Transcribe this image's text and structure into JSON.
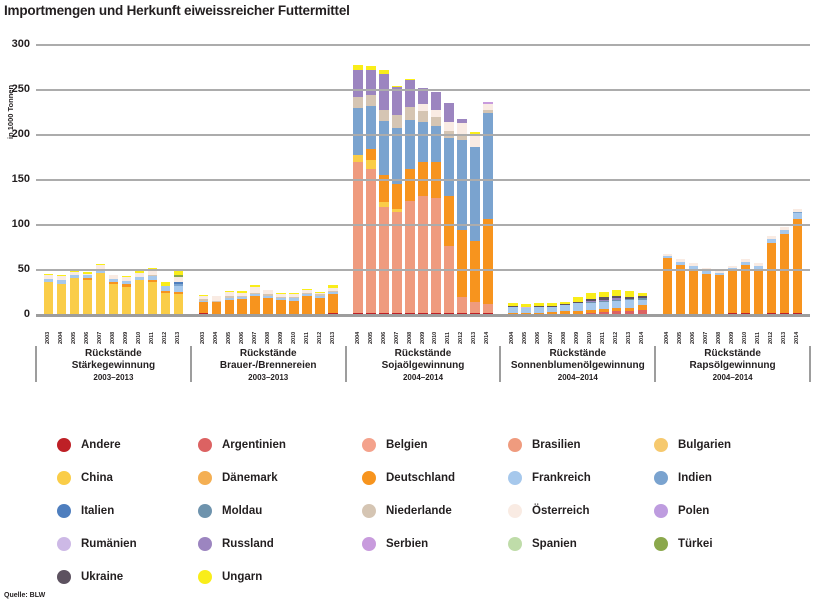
{
  "title": "Importmengen und Herkunft eiweissreicher Futtermittel",
  "source": "Quelle: BLW",
  "colors": {
    "Andere": "#be2026",
    "Argentinien": "#dc6262",
    "Belgien": "#f4a28c",
    "Brasilien": "#ef9b7e",
    "Bulgarien": "#f6c96e",
    "China": "#facd48",
    "Dänemark": "#f4af53",
    "Deutschland": "#f7941e",
    "Frankreich": "#a6c8ec",
    "Indien": "#7aa3cf",
    "Italien": "#4e7ebe",
    "Moldau": "#6e93ad",
    "Niederlande": "#d5c5b3",
    "Österreich": "#f9ebe3",
    "Polen": "#be9cdf",
    "Rumänien": "#cdb9e6",
    "Russland": "#9c85c0",
    "Serbien": "#c89bdd",
    "Spanien": "#bfdca9",
    "Türkei": "#8ba84c",
    "Ukraine": "#5d5260",
    "Ungarn": "#f9ed1a"
  },
  "legend": {
    "items": [
      "Andere",
      "Argentinien",
      "Belgien",
      "Brasilien",
      "Bulgarien",
      "China",
      "Dänemark",
      "Deutschland",
      "Frankreich",
      "Indien",
      "Italien",
      "Moldau",
      "Niederlande",
      "Österreich",
      "Polen",
      "Rumänien",
      "Russland",
      "Serbien",
      "Spanien",
      "Türkei",
      "Ukraine",
      "Ungarn"
    ]
  },
  "chart_data": {
    "type": "bar",
    "stacked": true,
    "title": "Importmengen und Herkunft eiweissreicher Futtermittel",
    "ylabel": "in 1000 Tonnen",
    "ylim": [
      0,
      300
    ],
    "yticks": [
      0,
      50,
      100,
      150,
      200,
      250,
      300
    ],
    "grid": true,
    "legend_position": "bottom",
    "stack_order": [
      "Andere",
      "Argentinien",
      "Belgien",
      "Brasilien",
      "Bulgarien",
      "China",
      "Dänemark",
      "Deutschland",
      "Frankreich",
      "Indien",
      "Italien",
      "Moldau",
      "Niederlande",
      "Österreich",
      "Polen",
      "Rumänien",
      "Russland",
      "Serbien",
      "Spanien",
      "Türkei",
      "Ukraine",
      "Ungarn"
    ],
    "groups": [
      {
        "label_line1": "Rückstände",
        "label_line2": "Stärkegewinnung",
        "years_label": "2003–2013",
        "years": [
          "2003",
          "2004",
          "2005",
          "2006",
          "2007",
          "2008",
          "2009",
          "2010",
          "2011",
          "2012",
          "2013"
        ],
        "bars": [
          {
            "Andere": 1,
            "China": 36,
            "Frankreich": 3,
            "Österreich": 4,
            "Ungarn": 2
          },
          {
            "Andere": 1,
            "China": 34,
            "Frankreich": 4,
            "Österreich": 4,
            "Ungarn": 1
          },
          {
            "Andere": 1,
            "China": 40,
            "Frankreich": 4,
            "Österreich": 3,
            "Ungarn": 3
          },
          {
            "Andere": 1,
            "China": 38,
            "Deutschland": 2,
            "Frankreich": 3,
            "Österreich": 2,
            "Ungarn": 2
          },
          {
            "Andere": 1,
            "China": 46,
            "Frankreich": 3,
            "Österreich": 6,
            "Ungarn": 1
          },
          {
            "Andere": 1,
            "China": 34,
            "Deutschland": 2,
            "Frankreich": 3,
            "Österreich": 4
          },
          {
            "Andere": 1,
            "China": 30,
            "Deutschland": 3,
            "Frankreich": 4,
            "Österreich": 4,
            "Ungarn": 1
          },
          {
            "Andere": 1,
            "China": 38,
            "Frankreich": 3,
            "Österreich": 5,
            "Ungarn": 2
          },
          {
            "Andere": 1,
            "China": 36,
            "Deutschland": 2,
            "Frankreich": 4,
            "Niederlande": 2,
            "Österreich": 4,
            "Ungarn": 3
          },
          {
            "Andere": 1,
            "China": 24,
            "Deutschland": 2,
            "Frankreich": 5,
            "Ungarn": 5
          },
          {
            "Andere": 1,
            "China": 22,
            "Deutschland": 3,
            "Frankreich": 6,
            "Indien": 3,
            "Italien": 2,
            "Österreich": 5,
            "Türkei": 3,
            "Ungarn": 5
          }
        ]
      },
      {
        "label_line1": "Rückstände",
        "label_line2": "Brauer-/Brennereien",
        "years_label": "2003–2013",
        "years": [
          "2003",
          "2004",
          "2005",
          "2006",
          "2007",
          "2008",
          "2009",
          "2010",
          "2011",
          "2012",
          "2013"
        ],
        "bars": [
          {
            "Andere": 2,
            "Deutschland": 13,
            "Frankreich": 1,
            "Niederlande": 2,
            "Österreich": 3,
            "Ungarn": 1
          },
          {
            "Andere": 1,
            "Deutschland": 14,
            "Niederlande": 1,
            "Österreich": 5
          },
          {
            "Andere": 1,
            "Deutschland": 16,
            "Frankreich": 2,
            "Niederlande": 2,
            "Österreich": 5,
            "Ungarn": 1
          },
          {
            "Andere": 1,
            "Deutschland": 17,
            "Frankreich": 2,
            "Niederlande": 1,
            "Österreich": 4,
            "Ungarn": 2
          },
          {
            "Andere": 1,
            "Deutschland": 20,
            "Frankreich": 2,
            "Niederlande": 2,
            "Österreich": 6,
            "Ungarn": 2
          },
          {
            "Andere": 1,
            "Deutschland": 18,
            "Frankreich": 2,
            "Niederlande": 2,
            "Österreich": 5
          },
          {
            "Andere": 1,
            "Deutschland": 16,
            "Frankreich": 2,
            "Niederlande": 1,
            "Österreich": 3,
            "Ungarn": 1
          },
          {
            "Andere": 1,
            "Deutschland": 15,
            "Frankreich": 3,
            "Niederlande": 1,
            "Österreich": 3,
            "Ungarn": 1
          },
          {
            "Andere": 1,
            "Deutschland": 20,
            "Frankreich": 3,
            "Niederlande": 1,
            "Österreich": 3,
            "Ungarn": 1
          },
          {
            "Andere": 1,
            "Deutschland": 18,
            "Frankreich": 2,
            "Niederlande": 2,
            "Österreich": 2,
            "Ungarn": 1
          },
          {
            "Andere": 2,
            "Deutschland": 21,
            "Frankreich": 3,
            "Niederlande": 1,
            "Österreich": 3,
            "Ungarn": 3
          }
        ]
      },
      {
        "label_line1": "Rückstände",
        "label_line2": "Sojaölgewinnung",
        "years_label": "2004–2014",
        "years": [
          "2004",
          "2005",
          "2006",
          "2007",
          "2008",
          "2009",
          "2010",
          "2011",
          "2012",
          "2013",
          "2014"
        ],
        "bars": [
          {
            "Andere": 2,
            "Brasilien": 168,
            "China": 8,
            "Indien": 52,
            "Niederlande": 12,
            "Russland": 30,
            "Ungarn": 6
          },
          {
            "Andere": 2,
            "Brasilien": 160,
            "China": 10,
            "Deutschland": 12,
            "Indien": 48,
            "Niederlande": 12,
            "Russland": 28,
            "Ungarn": 5
          },
          {
            "Andere": 2,
            "Brasilien": 118,
            "China": 6,
            "Deutschland": 30,
            "Indien": 60,
            "Niederlande": 12,
            "Russland": 40,
            "Ungarn": 4
          },
          {
            "Andere": 2,
            "Brasilien": 112,
            "China": 4,
            "Deutschland": 28,
            "Indien": 62,
            "Niederlande": 14,
            "Russland": 32,
            "Ungarn": 1
          },
          {
            "Andere": 2,
            "Brasilien": 125,
            "Deutschland": 35,
            "Indien": 55,
            "Niederlande": 14,
            "Russland": 30,
            "Ungarn": 1
          },
          {
            "Andere": 2,
            "Brasilien": 130,
            "Deutschland": 38,
            "Indien": 45,
            "Niederlande": 12,
            "Österreich": 8,
            "Russland": 17
          },
          {
            "Andere": 2,
            "Brasilien": 128,
            "Deutschland": 40,
            "Indien": 40,
            "Niederlande": 10,
            "Österreich": 8,
            "Russland": 20
          },
          {
            "Andere": 2,
            "Brasilien": 75,
            "Deutschland": 55,
            "Indien": 65,
            "Niederlande": 8,
            "Österreich": 10,
            "Russland": 21
          },
          {
            "Andere": 2,
            "Brasilien": 18,
            "Deutschland": 75,
            "Indien": 100,
            "Niederlande": 6,
            "Österreich": 12,
            "Russland": 5
          },
          {
            "Andere": 2,
            "Brasilien": 12,
            "Deutschland": 68,
            "Indien": 105,
            "Österreich": 12,
            "Ungarn": 4
          },
          {
            "Andere": 2,
            "Brasilien": 10,
            "Deutschland": 95,
            "Indien": 118,
            "Niederlande": 3,
            "Österreich": 6,
            "Serbien": 3
          }
        ]
      },
      {
        "label_line1": "Rückstände",
        "label_line2": "Sonnenblumenölgewinnung",
        "years_label": "2004–2014",
        "years": [
          "2004",
          "2005",
          "2006",
          "2007",
          "2008",
          "2009",
          "2010",
          "2011",
          "2012",
          "2013",
          "2014"
        ],
        "bars": [
          {
            "Deutschland": 2,
            "Frankreich": 7,
            "Ukraine": 1,
            "Ungarn": 3
          },
          {
            "Deutschland": 2,
            "Frankreich": 6,
            "Rumänien": 1,
            "Ungarn": 3
          },
          {
            "Deutschland": 2,
            "Frankreich": 7,
            "Ukraine": 1,
            "Ungarn": 3
          },
          {
            "Deutschland": 3,
            "Frankreich": 6,
            "Ukraine": 1,
            "Ungarn": 3
          },
          {
            "Argentinien": 1,
            "Deutschland": 3,
            "Frankreich": 7,
            "Ukraine": 1,
            "Ungarn": 3
          },
          {
            "Argentinien": 1,
            "Deutschland": 4,
            "Frankreich": 8,
            "Russland": 1,
            "Ukraine": 1,
            "Ungarn": 5
          },
          {
            "Argentinien": 2,
            "Deutschland": 4,
            "Frankreich": 8,
            "Moldau": 1,
            "Russland": 1,
            "Ukraine": 2,
            "Ungarn": 6
          },
          {
            "Argentinien": 3,
            "Deutschland": 4,
            "Frankreich": 8,
            "Moldau": 1,
            "Russland": 1,
            "Ukraine": 3,
            "Ungarn": 6
          },
          {
            "Argentinien": 4,
            "Deutschland": 4,
            "Frankreich": 8,
            "Moldau": 1,
            "Russland": 2,
            "Ukraine": 2,
            "Ungarn": 7
          },
          {
            "Argentinien": 4,
            "Deutschland": 4,
            "Frankreich": 9,
            "Moldau": 1,
            "Ukraine": 2,
            "Ungarn": 7
          },
          {
            "Argentinien": 6,
            "Deutschland": 5,
            "Frankreich": 6,
            "Moldau": 2,
            "Ukraine": 2,
            "Ungarn": 4
          }
        ]
      },
      {
        "label_line1": "Rückstände",
        "label_line2": "Rapsölgewinnung",
        "years_label": "2004–2014",
        "years": [
          "2004",
          "2005",
          "2006",
          "2007",
          "2008",
          "2009",
          "2010",
          "2011",
          "2012",
          "2013",
          "2014"
        ],
        "bars": [
          {
            "Andere": 1,
            "Deutschland": 62,
            "Frankreich": 3,
            "Österreich": 2
          },
          {
            "Andere": 1,
            "Deutschland": 55,
            "Frankreich": 3,
            "Österreich": 3
          },
          {
            "Andere": 1,
            "Deutschland": 50,
            "Frankreich": 4,
            "Österreich": 3
          },
          {
            "Andere": 1,
            "Deutschland": 45,
            "Frankreich": 3,
            "Österreich": 3
          },
          {
            "Andere": 1,
            "Deutschland": 43,
            "Frankreich": 3,
            "Österreich": 3
          },
          {
            "Andere": 2,
            "Deutschland": 47,
            "Frankreich": 3,
            "Österreich": 3
          },
          {
            "Andere": 2,
            "Deutschland": 54,
            "Frankreich": 3,
            "Österreich": 3
          },
          {
            "Andere": 1,
            "Deutschland": 50,
            "Frankreich": 4,
            "Österreich": 3
          },
          {
            "Andere": 2,
            "Deutschland": 78,
            "Frankreich": 4,
            "Österreich": 4
          },
          {
            "Andere": 2,
            "Deutschland": 88,
            "Frankreich": 4,
            "Österreich": 4
          },
          {
            "Andere": 2,
            "Deutschland": 105,
            "Frankreich": 6,
            "Indien": 2,
            "Österreich": 3
          }
        ]
      }
    ]
  }
}
